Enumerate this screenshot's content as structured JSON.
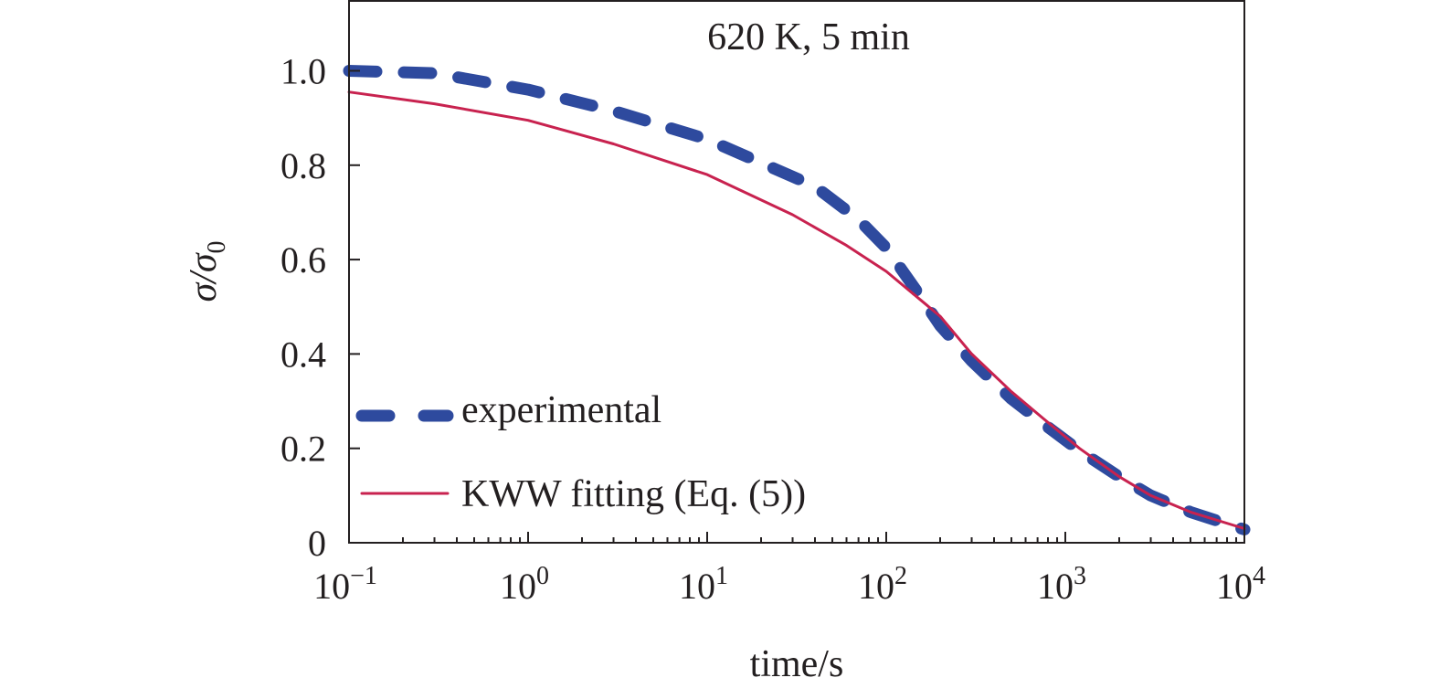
{
  "chart_data": {
    "type": "line",
    "annotation": "620 K, 5 min",
    "xlabel": "time/s",
    "ylabel": "σ/σ0",
    "x_scale": "log",
    "xlim": [
      0.1,
      10000
    ],
    "ylim": [
      0,
      1.15
    ],
    "x_ticks": [
      {
        "value": 0.1,
        "base": "10",
        "exp": "−1"
      },
      {
        "value": 1,
        "base": "10",
        "exp": "0"
      },
      {
        "value": 10,
        "base": "10",
        "exp": "1"
      },
      {
        "value": 100,
        "base": "10",
        "exp": "2"
      },
      {
        "value": 1000,
        "base": "10",
        "exp": "3"
      },
      {
        "value": 10000,
        "base": "10",
        "exp": "4"
      }
    ],
    "y_ticks": [
      {
        "value": 0,
        "label": "0"
      },
      {
        "value": 0.2,
        "label": "0.2"
      },
      {
        "value": 0.4,
        "label": "0.4"
      },
      {
        "value": 0.6,
        "label": "0.6"
      },
      {
        "value": 0.8,
        "label": "0.8"
      },
      {
        "value": 1.0,
        "label": "1.0"
      }
    ],
    "grid": false,
    "legend_position": "bottom-left",
    "series": [
      {
        "name": "experimental",
        "style": "dashed",
        "color": "#2e4a9e",
        "points": [
          [
            0.1,
            1.0
          ],
          [
            0.3,
            0.995
          ],
          [
            1,
            0.96
          ],
          [
            3,
            0.915
          ],
          [
            10,
            0.855
          ],
          [
            20,
            0.805
          ],
          [
            40,
            0.755
          ],
          [
            70,
            0.685
          ],
          [
            100,
            0.625
          ],
          [
            150,
            0.53
          ],
          [
            200,
            0.46
          ],
          [
            300,
            0.385
          ],
          [
            500,
            0.305
          ],
          [
            800,
            0.245
          ],
          [
            1200,
            0.195
          ],
          [
            2000,
            0.14
          ],
          [
            3000,
            0.1
          ],
          [
            5000,
            0.065
          ],
          [
            10000,
            0.028
          ]
        ]
      },
      {
        "name": "KWW fitting (Eq. (5))",
        "style": "solid",
        "color": "#c8224f",
        "points": [
          [
            0.1,
            0.955
          ],
          [
            0.3,
            0.93
          ],
          [
            1,
            0.895
          ],
          [
            3,
            0.845
          ],
          [
            10,
            0.78
          ],
          [
            30,
            0.695
          ],
          [
            60,
            0.63
          ],
          [
            100,
            0.575
          ],
          [
            200,
            0.48
          ],
          [
            300,
            0.4
          ],
          [
            500,
            0.32
          ],
          [
            800,
            0.255
          ],
          [
            1200,
            0.2
          ],
          [
            2000,
            0.14
          ],
          [
            3000,
            0.1
          ],
          [
            5000,
            0.065
          ],
          [
            10000,
            0.03
          ]
        ]
      }
    ]
  }
}
